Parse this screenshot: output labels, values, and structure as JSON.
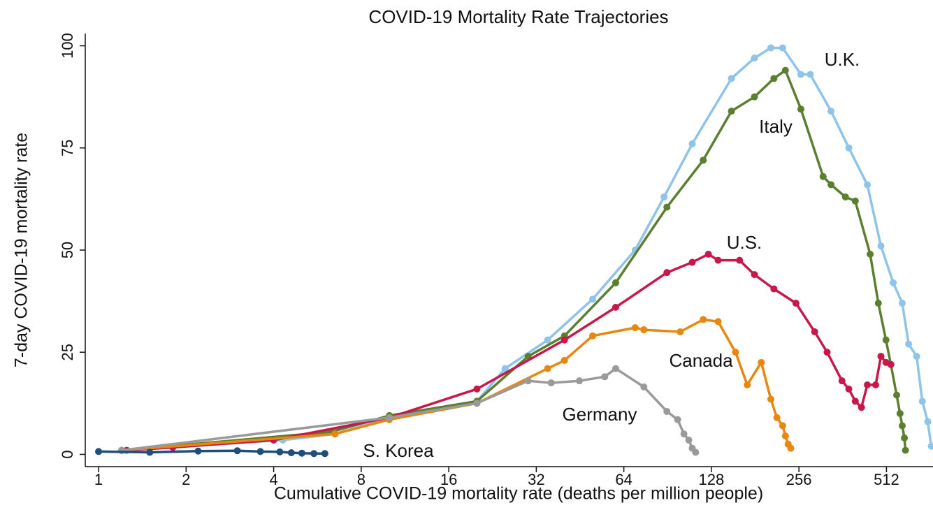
{
  "chart_data": {
    "type": "line",
    "title": "COVID-19 Mortality Rate Trajectories",
    "xlabel": "Cumulative COVID-19 mortality rate (deaths per million people)",
    "ylabel": "7-day COVID-19 mortality rate",
    "xscale": "log2",
    "xlim": [
      0.9,
      740
    ],
    "ylim": [
      -3,
      103
    ],
    "xticks": [
      1,
      2,
      4,
      8,
      16,
      32,
      64,
      128,
      256,
      512
    ],
    "yticks": [
      0,
      25,
      50,
      75,
      100
    ],
    "grid": false,
    "series": [
      {
        "name": "U.K.",
        "color": "#8ec4ea",
        "x": [
          1.2,
          4.3,
          6.5,
          10,
          20,
          25,
          35,
          50,
          70,
          88,
          110,
          150,
          180,
          205,
          225,
          260,
          280,
          330,
          380,
          440,
          490,
          540,
          580,
          610,
          650,
          680,
          710,
          730
        ],
        "y": [
          0.9,
          3.5,
          5,
          9,
          13,
          21,
          28,
          38,
          50,
          63,
          76,
          92,
          97,
          99.5,
          99.5,
          93,
          93,
          84,
          75,
          66,
          51,
          42,
          37,
          27,
          24,
          13,
          8,
          2
        ]
      },
      {
        "name": "Italy",
        "color": "#5b7f2f",
        "x": [
          1.2,
          6.3,
          10,
          20,
          30,
          40,
          60,
          90,
          120,
          150,
          180,
          210,
          230,
          260,
          310,
          330,
          370,
          400,
          450,
          480,
          510,
          530,
          555,
          570,
          580,
          590,
          595
        ],
        "y": [
          1,
          5.5,
          9.5,
          13,
          24,
          29,
          42,
          60.5,
          72,
          84,
          87.5,
          92,
          94,
          84.5,
          68,
          66,
          63,
          62,
          49,
          37,
          28,
          22,
          14.5,
          10,
          7,
          4,
          1
        ]
      },
      {
        "name": "U.S.",
        "color": "#c8174b",
        "x": [
          1.25,
          1.8,
          4,
          10,
          20,
          40,
          60,
          90,
          110,
          125,
          135,
          160,
          180,
          210,
          250,
          290,
          320,
          360,
          380,
          400,
          420,
          440,
          470,
          490,
          510,
          530
        ],
        "y": [
          1,
          1.7,
          3.5,
          9,
          16,
          28,
          36,
          44.5,
          47,
          49,
          47.5,
          47.5,
          44,
          40.5,
          37,
          30,
          25,
          18,
          16,
          13,
          11.5,
          17,
          17,
          24,
          22.5,
          22
        ]
      },
      {
        "name": "Canada",
        "color": "#e8870e",
        "x": [
          1.2,
          6.5,
          10,
          20,
          35,
          40,
          50,
          70,
          75,
          100,
          120,
          135,
          155,
          170,
          190,
          205,
          215,
          225,
          230,
          235,
          240
        ],
        "y": [
          1,
          5,
          8.5,
          12.5,
          21,
          23,
          29,
          31,
          30.5,
          30,
          33,
          32.5,
          25,
          17,
          22.5,
          13.5,
          9,
          7,
          4.5,
          2.5,
          1.5
        ]
      },
      {
        "name": "Germany",
        "color": "#9a9a9a",
        "x": [
          1.2,
          10,
          20,
          30,
          36,
          45,
          55,
          60,
          75,
          90,
          98,
          103,
          107,
          110,
          113
        ],
        "y": [
          1,
          9,
          12.5,
          18,
          17.5,
          18,
          19,
          21,
          16.5,
          10.5,
          8.5,
          5,
          3.5,
          1.5,
          0.5
        ]
      },
      {
        "name": "S. Korea",
        "color": "#1f4e79",
        "x": [
          1,
          1.5,
          2.2,
          3,
          3.6,
          4.2,
          4.6,
          5,
          5.5,
          6
        ],
        "y": [
          0.7,
          0.5,
          0.8,
          0.9,
          0.7,
          0.6,
          0.4,
          0.3,
          0.2,
          0.2
        ]
      }
    ]
  }
}
